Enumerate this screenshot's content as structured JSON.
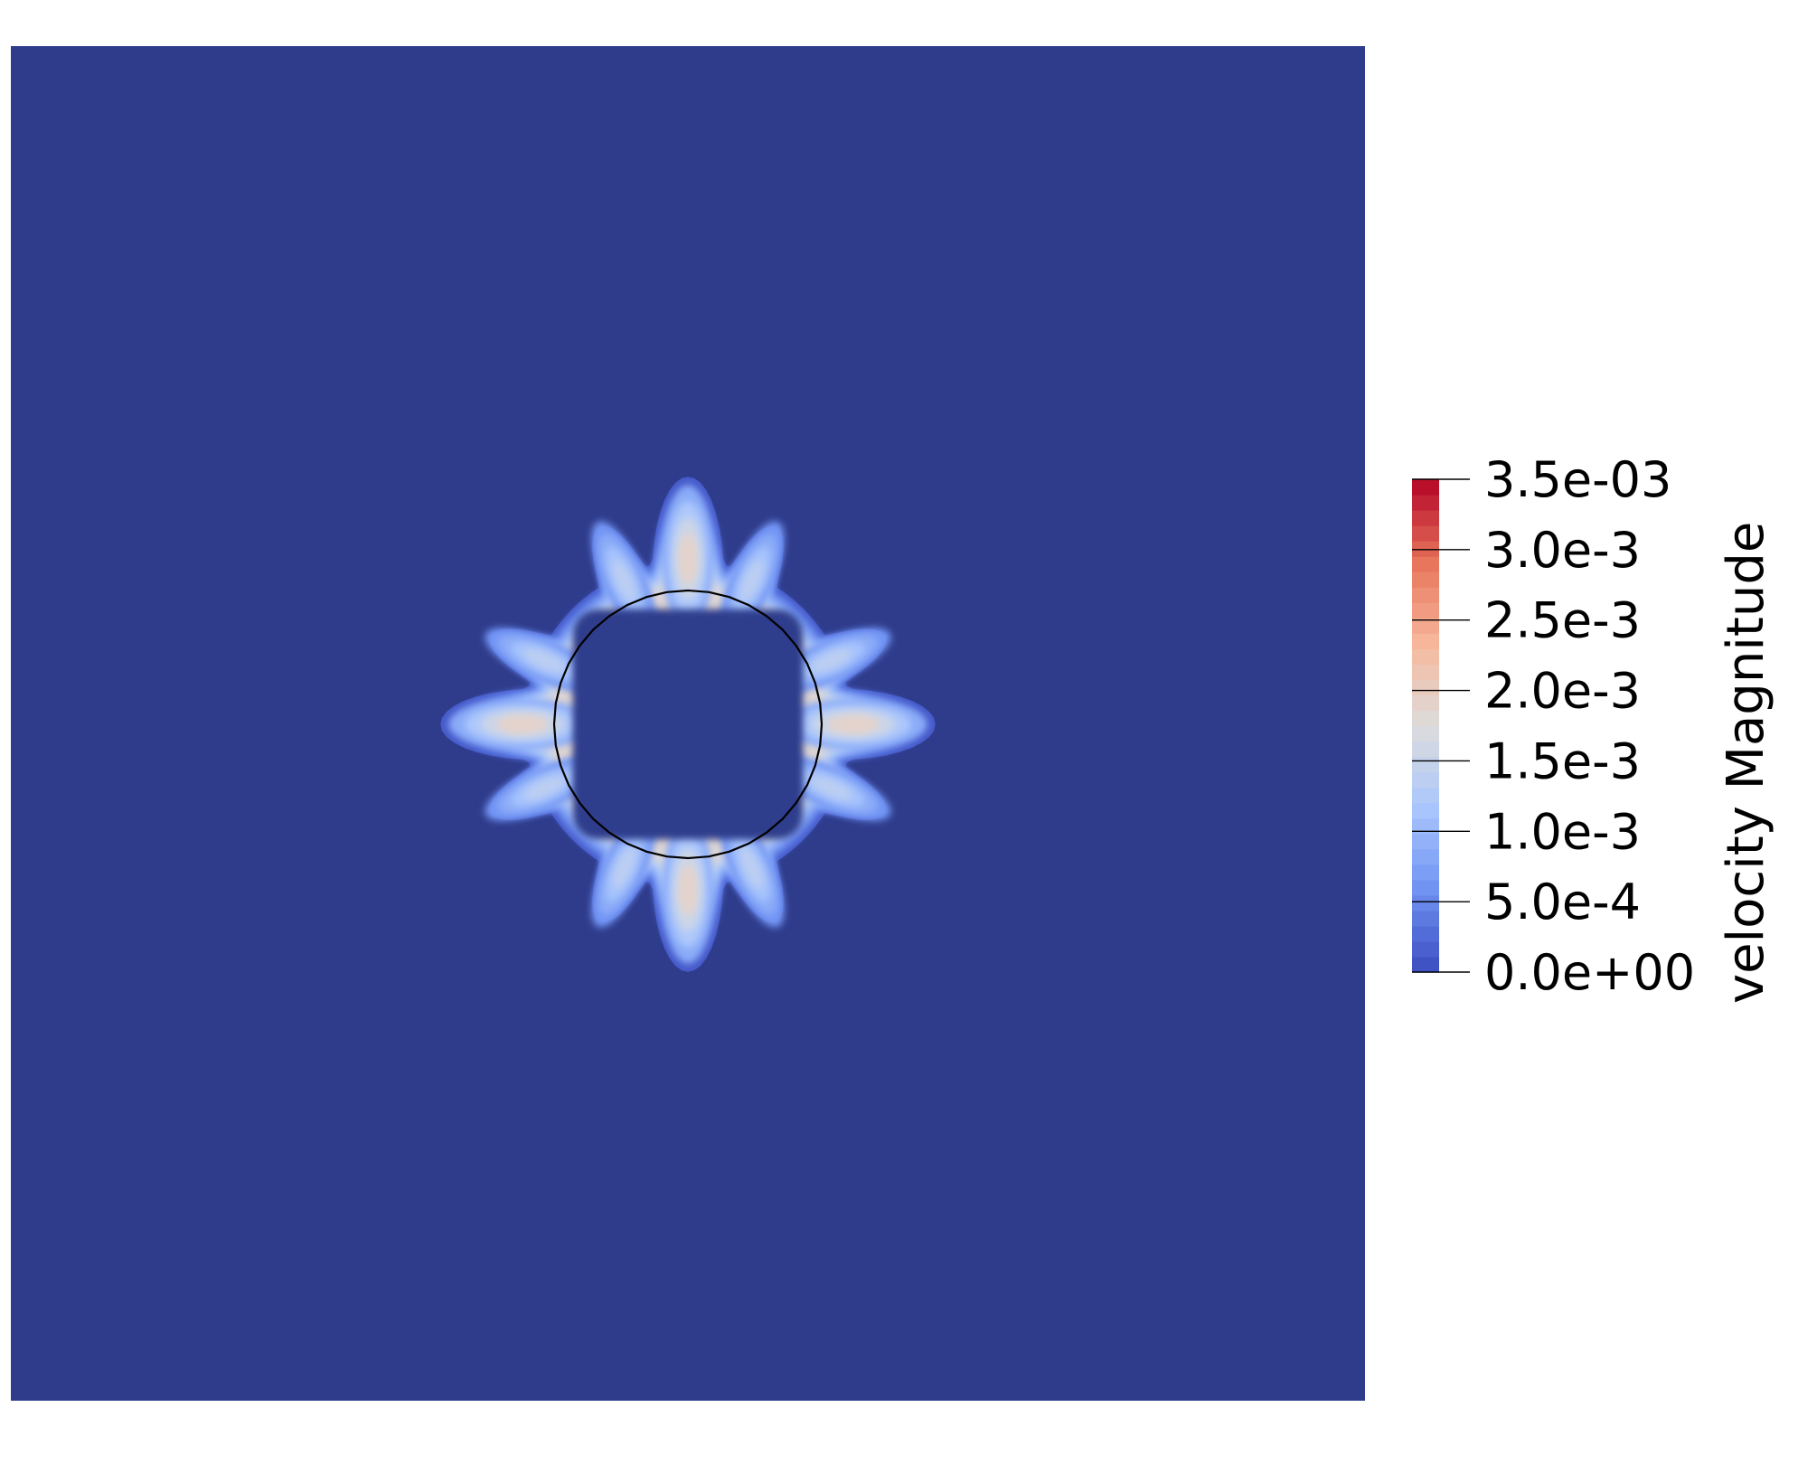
{
  "chart_data": {
    "type": "heatmap",
    "field": "velocity Magnitude",
    "colorbar": {
      "title": "velocity Magnitude",
      "range": [
        0.0,
        0.0035
      ],
      "n_bands": 32,
      "ticks": [
        {
          "value": 0.0035,
          "label": "3.5e-03"
        },
        {
          "value": 0.003,
          "label": "3.0e-3"
        },
        {
          "value": 0.0025,
          "label": "2.5e-3"
        },
        {
          "value": 0.002,
          "label": "2.0e-3"
        },
        {
          "value": 0.0015,
          "label": "1.5e-3"
        },
        {
          "value": 0.001,
          "label": "1.0e-3"
        },
        {
          "value": 0.0005,
          "label": "5.0e-4"
        },
        {
          "value": 0.0,
          "label": "0.0e+00"
        }
      ],
      "colormap": "coolwarm",
      "colormap_stops": [
        "#3b4cc0",
        "#6f92f3",
        "#aac7fd",
        "#dddcdc",
        "#f7b89c",
        "#e7745b",
        "#b40426"
      ],
      "legend_position": "right"
    },
    "domain_background_value": 0.0,
    "interface": "circle outline",
    "peak_value_approx": 0.0019,
    "pattern": "twelve lobes around circular interface, strongest at top, bottom, left and right"
  },
  "colors": {
    "background": "#ffffff",
    "domain": "#2f3c8c",
    "interface_line": "#000000"
  }
}
